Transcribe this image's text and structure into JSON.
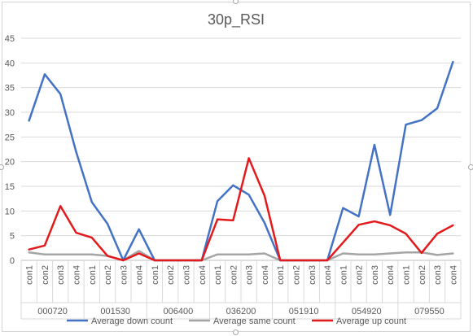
{
  "chart_data": {
    "type": "line",
    "title": "30p_RSI",
    "xlabel": "",
    "ylabel": "",
    "ylim": [
      0,
      45
    ],
    "yticks": [
      0,
      5,
      10,
      15,
      20,
      25,
      30,
      35,
      40,
      45
    ],
    "grid": true,
    "legend_position": "bottom",
    "groups": [
      {
        "name": "000720",
        "categories": [
          "con1",
          "con2",
          "con3",
          "con4"
        ]
      },
      {
        "name": "001530",
        "categories": [
          "con1",
          "con2",
          "con3",
          "con4"
        ]
      },
      {
        "name": "006400",
        "categories": [
          "con1",
          "con2",
          "con3",
          "con4"
        ]
      },
      {
        "name": "036200",
        "categories": [
          "con1",
          "con2",
          "con3",
          "con4"
        ]
      },
      {
        "name": "051910",
        "categories": [
          "con1",
          "con2",
          "con3",
          "con4"
        ]
      },
      {
        "name": "054920",
        "categories": [
          "con1",
          "con2",
          "con3",
          "con4"
        ]
      },
      {
        "name": "079550",
        "categories": [
          "con1",
          "con2",
          "con3",
          "con4"
        ]
      }
    ],
    "series": [
      {
        "name": "Average down count",
        "color": "#4472c4",
        "values": [
          28.3,
          37.7,
          33.7,
          22.0,
          11.8,
          7.4,
          0,
          6.3,
          0,
          0,
          0,
          0,
          12.0,
          15.2,
          13.3,
          7.6,
          0,
          0,
          0,
          0,
          10.6,
          8.9,
          23.4,
          9.2,
          27.5,
          28.4,
          30.8,
          40.2
        ]
      },
      {
        "name": "Average same count",
        "color": "#a5a5a5",
        "values": [
          1.6,
          1.2,
          1.2,
          1.2,
          1.2,
          0.9,
          0,
          1.9,
          0,
          0,
          0,
          0,
          1.2,
          1.2,
          1.2,
          1.4,
          0,
          0,
          0,
          0,
          1.4,
          1.2,
          1.2,
          1.4,
          1.6,
          1.6,
          1.1,
          1.4
        ]
      },
      {
        "name": "Average up count",
        "color": "#e31a1c",
        "values": [
          2.2,
          3.0,
          11.0,
          5.6,
          4.6,
          0.9,
          0,
          1.4,
          0,
          0,
          0,
          0,
          8.3,
          8.1,
          20.7,
          13.1,
          0,
          0,
          0,
          0,
          3.6,
          7.2,
          7.9,
          7.1,
          5.4,
          1.5,
          5.4,
          7.1
        ]
      }
    ]
  }
}
